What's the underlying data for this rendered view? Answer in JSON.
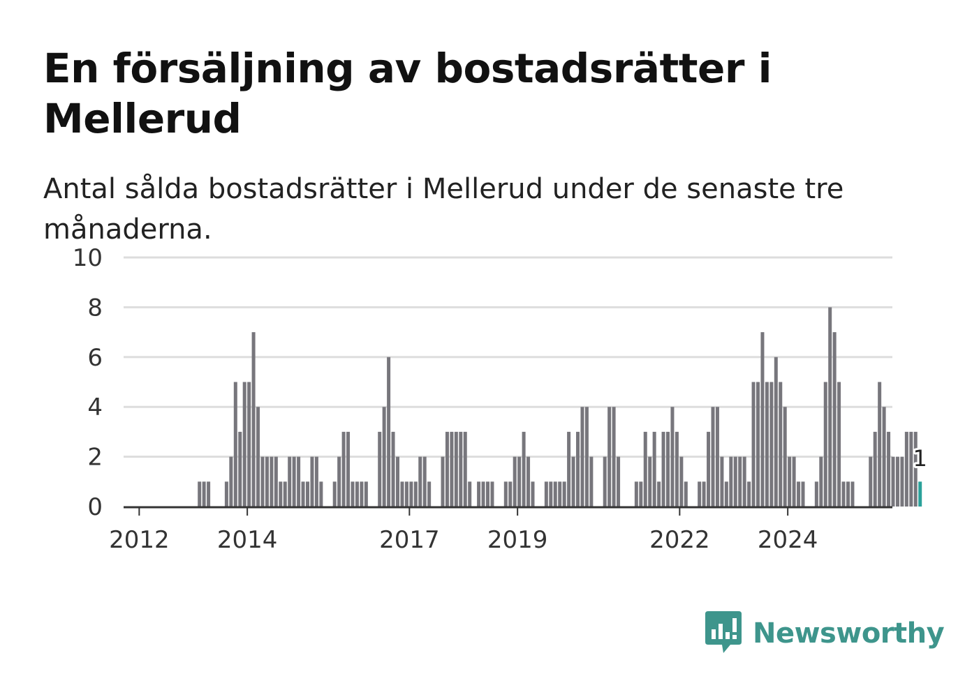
{
  "title": "En försäljning av bostadsrätter i Mellerud",
  "subtitle": "Antal sålda bostadsrätter i Mellerud under de senaste tre månaderna.",
  "brand": {
    "name": "Newsworthy",
    "icon": "newsworthy-logo-icon"
  },
  "colors": {
    "bar": "#77767c",
    "highlight": "#2ba19a",
    "grid": "#dddddd",
    "axis": "#333333",
    "brand": "#3e958c"
  },
  "chart_data": {
    "type": "bar",
    "xlabel": "",
    "ylabel": "",
    "ylim": [
      0,
      10
    ],
    "yticks": [
      0,
      2,
      4,
      6,
      8,
      10
    ],
    "xticks": [
      "2012",
      "2014",
      "2017",
      "2019",
      "2022",
      "2024"
    ],
    "x_start": "2011-10",
    "grid": true,
    "legend": "none",
    "highlight_label": "1",
    "values": [
      0,
      0,
      0,
      0,
      0,
      0,
      0,
      0,
      0,
      0,
      0,
      0,
      0,
      0,
      0,
      0,
      1,
      1,
      1,
      0,
      0,
      0,
      1,
      2,
      5,
      3,
      5,
      5,
      7,
      4,
      2,
      2,
      2,
      2,
      1,
      1,
      2,
      2,
      2,
      1,
      1,
      2,
      2,
      1,
      0,
      0,
      1,
      2,
      3,
      3,
      1,
      1,
      1,
      1,
      0,
      0,
      3,
      4,
      6,
      3,
      2,
      1,
      1,
      1,
      1,
      2,
      2,
      1,
      0,
      0,
      2,
      3,
      3,
      3,
      3,
      3,
      1,
      0,
      1,
      1,
      1,
      1,
      0,
      0,
      1,
      1,
      2,
      2,
      3,
      2,
      1,
      0,
      0,
      1,
      1,
      1,
      1,
      1,
      3,
      2,
      3,
      4,
      4,
      2,
      0,
      0,
      2,
      4,
      4,
      2,
      0,
      0,
      0,
      1,
      1,
      3,
      2,
      3,
      1,
      3,
      3,
      4,
      3,
      2,
      1,
      0,
      0,
      1,
      1,
      3,
      4,
      4,
      2,
      1,
      2,
      2,
      2,
      2,
      1,
      5,
      5,
      7,
      5,
      5,
      6,
      5,
      4,
      2,
      2,
      1,
      1,
      0,
      0,
      1,
      2,
      5,
      8,
      7,
      5,
      1,
      1,
      1,
      0,
      0,
      0,
      2,
      3,
      5,
      4,
      3,
      2,
      2,
      2,
      3,
      3,
      3,
      1
    ]
  }
}
